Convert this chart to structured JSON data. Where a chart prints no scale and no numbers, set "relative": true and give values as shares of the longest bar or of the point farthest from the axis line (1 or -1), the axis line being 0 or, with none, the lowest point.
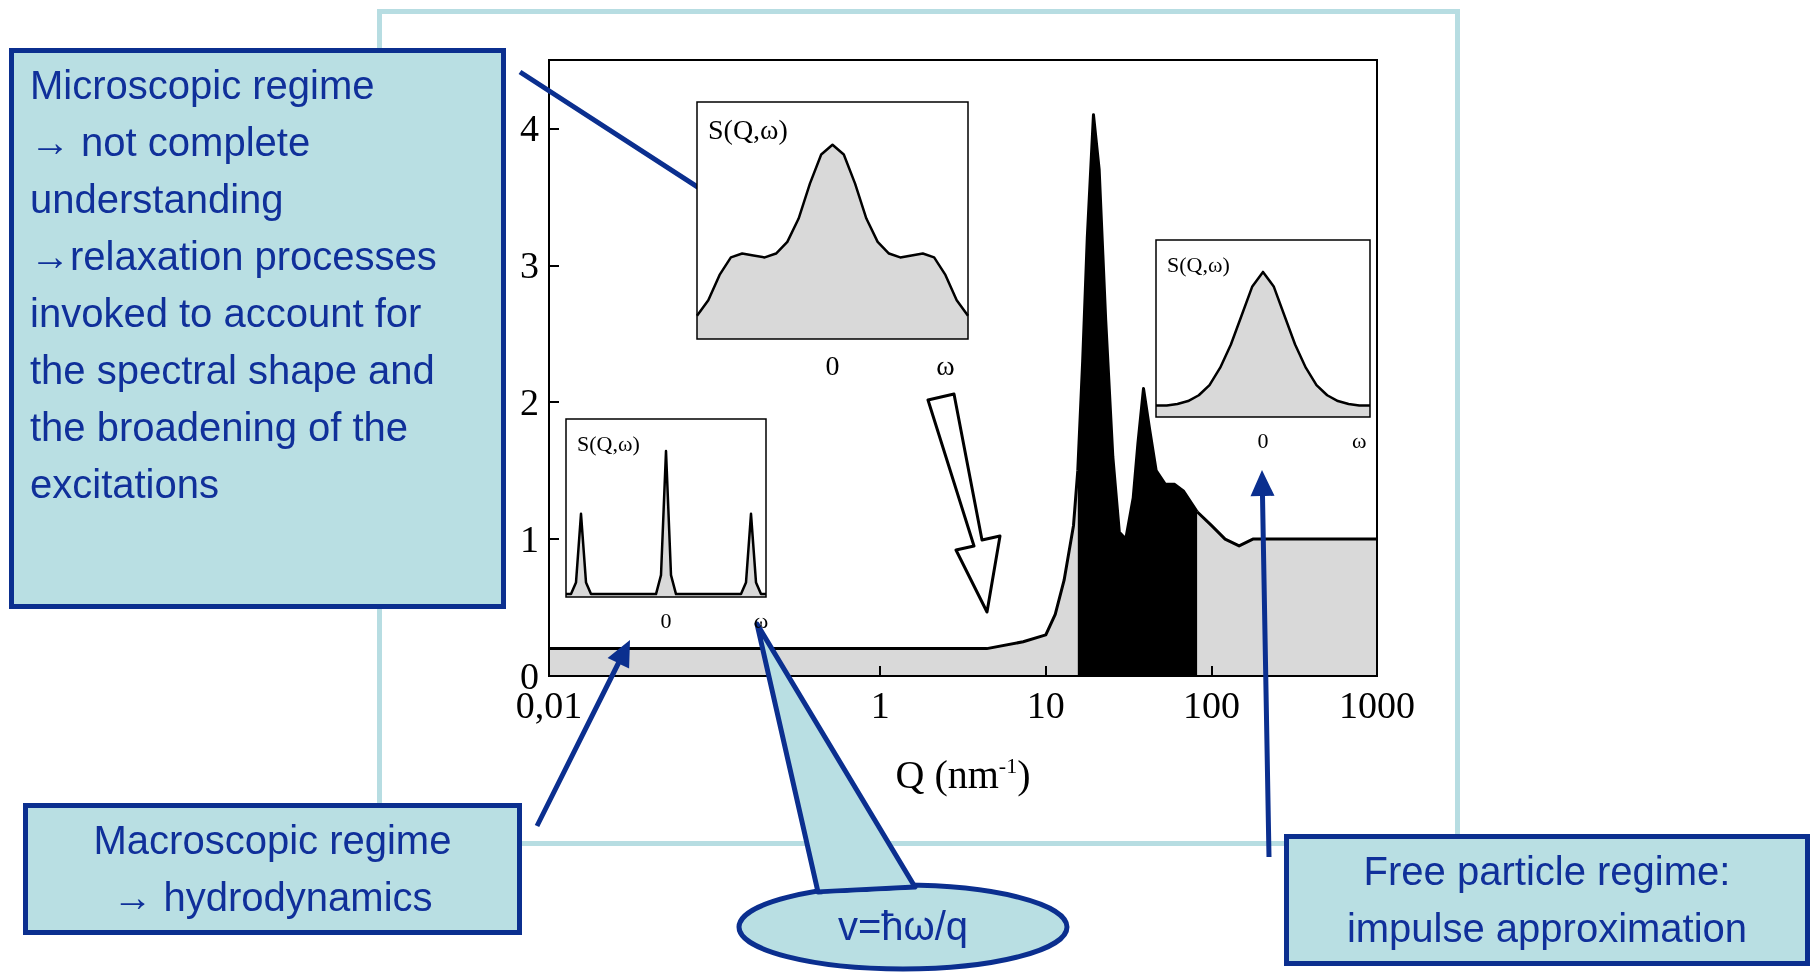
{
  "chart_data": [
    {
      "type": "area",
      "xlabel": "Q (nm$^{-1}$)",
      "log": "x",
      "marker": "none",
      "xlim": [
        0.01,
        1000
      ],
      "xticks": [
        {
          "value": 0.01,
          "label": "0,01"
        },
        1,
        10,
        100,
        1000
      ],
      "ylim": [
        0,
        4.5
      ],
      "yticks": [
        0,
        1,
        2,
        3,
        4
      ],
      "series": [
        {
          "color": "#000000",
          "x": [
            0.01,
            0.1,
            1,
            3,
            4.4,
            7.3,
            10,
            11.4,
            12.9,
            14.7,
            15.6
          ],
          "values": [
            0.2,
            0.2,
            0.2,
            0.2,
            0.2,
            0.25,
            0.3,
            0.45,
            0.7,
            1.1,
            1.5
          ]
        },
        {
          "color": "#000000",
          "x": [
            15.6,
            16.7,
            17.8,
            19.4,
            21,
            23,
            25.4,
            27.8,
            30.4,
            33.7,
            36,
            38.9,
            42.4,
            46.4,
            52.7,
            60,
            68,
            82
          ],
          "values": [
            1.5,
            2.3,
            3.2,
            4.1,
            3.7,
            2.6,
            1.6,
            1.05,
            1.0,
            1.3,
            1.7,
            2.1,
            1.8,
            1.5,
            1.4,
            1.4,
            1.35,
            1.2
          ]
        },
        {
          "color": "#000000",
          "x": [
            82,
            100,
            121,
            147,
            178,
            261,
            1000
          ],
          "values": [
            1.2,
            1.1,
            1.0,
            0.95,
            1.0,
            1.0,
            1.0
          ]
        }
      ],
      "annotations": [
        "Microscopic regime\n→ not complete understanding\n→relaxation processes invoked to account for the spectral shape and the broadening of the excitations",
        "Macroscopic regime\n→ hydrodynamics",
        "v=ħω/q",
        "Free particle regime:\nimpulse approximation"
      ]
    },
    {
      "type": "area",
      "relative": true,
      "ylabel": "S(Q,ω)",
      "color": "#000000",
      "categories": [
        null,
        null,
        null,
        null,
        null,
        null,
        null,
        null,
        null,
        null,
        null,
        null,
        "0",
        null,
        null,
        null,
        null,
        null,
        null,
        null,
        null,
        null,
        "ω",
        null,
        null
      ],
      "values": [
        0.12,
        0.2,
        0.33,
        0.42,
        0.44,
        0.43,
        0.42,
        0.44,
        0.5,
        0.62,
        0.8,
        0.95,
        1.0,
        0.95,
        0.8,
        0.62,
        0.5,
        0.44,
        0.42,
        0.43,
        0.44,
        0.42,
        0.33,
        0.2,
        0.12
      ]
    },
    {
      "type": "area",
      "relative": true,
      "ylabel": "S(Q,ω)",
      "color": "#000000",
      "categories": [
        null,
        null,
        null,
        null,
        null,
        null,
        null,
        null,
        null,
        null,
        null,
        null,
        null,
        null,
        null,
        null,
        null,
        null,
        null,
        null,
        "0",
        null,
        null,
        null,
        null,
        null,
        null,
        null,
        null,
        null,
        null,
        null,
        null,
        null,
        null,
        null,
        null,
        null,
        null,
        "ω",
        null
      ],
      "values": [
        0.02,
        0.02,
        0.1,
        0.57,
        0.1,
        0.02,
        0.02,
        0.02,
        0.02,
        0.02,
        0.02,
        0.02,
        0.02,
        0.02,
        0.02,
        0.02,
        0.02,
        0.02,
        0.02,
        0.15,
        1.0,
        0.15,
        0.02,
        0.02,
        0.02,
        0.02,
        0.02,
        0.02,
        0.02,
        0.02,
        0.02,
        0.02,
        0.02,
        0.02,
        0.02,
        0.02,
        0.1,
        0.57,
        0.1,
        0.02,
        0.02
      ]
    },
    {
      "type": "area",
      "relative": true,
      "ylabel": "S(Q,ω)",
      "color": "#000000",
      "categories": [
        null,
        null,
        null,
        null,
        null,
        null,
        null,
        null,
        null,
        null,
        "0",
        null,
        null,
        null,
        null,
        null,
        null,
        null,
        null,
        "ω",
        null
      ],
      "values": [
        0.08,
        0.08,
        0.09,
        0.11,
        0.15,
        0.22,
        0.34,
        0.5,
        0.7,
        0.9,
        1.0,
        0.9,
        0.7,
        0.5,
        0.34,
        0.22,
        0.15,
        0.11,
        0.09,
        0.08,
        0.08
      ]
    }
  ]
}
